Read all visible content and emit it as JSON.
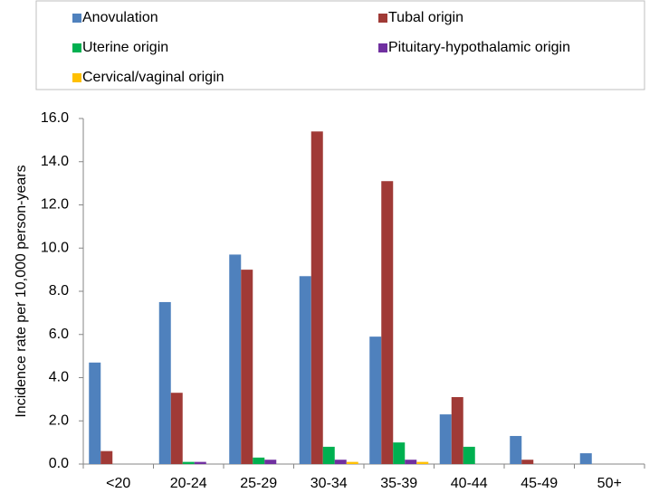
{
  "chart_data": {
    "type": "bar",
    "y_label": "Incidence rate per 10,000 person-years",
    "categories": [
      "<20",
      "20-24",
      "25-29",
      "30-34",
      "35-39",
      "40-44",
      "45-49",
      "50+"
    ],
    "series": [
      {
        "name": "Anovulation",
        "color": "#4f81bd",
        "values": [
          4.7,
          7.5,
          9.7,
          8.7,
          5.9,
          2.3,
          1.3,
          0.5
        ]
      },
      {
        "name": "Tubal origin",
        "color": "#a03a36",
        "values": [
          0.6,
          3.3,
          9.0,
          15.4,
          13.1,
          3.1,
          0.2,
          0
        ]
      },
      {
        "name": "Uterine origin",
        "color": "#00b050",
        "values": [
          0,
          0.1,
          0.3,
          0.8,
          1.0,
          0.8,
          0,
          0
        ]
      },
      {
        "name": "Pituitary-hypothalamic origin",
        "color": "#7030a0",
        "values": [
          0,
          0.1,
          0.2,
          0.2,
          0.2,
          0,
          0,
          0
        ]
      },
      {
        "name": "Cervical/vaginal origin",
        "color": "#ffc000",
        "values": [
          0,
          0,
          0,
          0.1,
          0.1,
          0,
          0,
          0
        ]
      }
    ],
    "ylim": [
      0,
      16
    ],
    "yticks": [
      {
        "value": 0,
        "label": "0.0"
      },
      {
        "value": 2,
        "label": "2.0"
      },
      {
        "value": 4,
        "label": "4.0"
      },
      {
        "value": 6,
        "label": "6.0"
      },
      {
        "value": 8,
        "label": "8.0"
      },
      {
        "value": 10,
        "label": "10.0"
      },
      {
        "value": 12,
        "label": "12.0"
      },
      {
        "value": 14,
        "label": "14.0"
      },
      {
        "value": 16,
        "label": "16.0"
      }
    ],
    "legend": "top",
    "grid": false
  }
}
